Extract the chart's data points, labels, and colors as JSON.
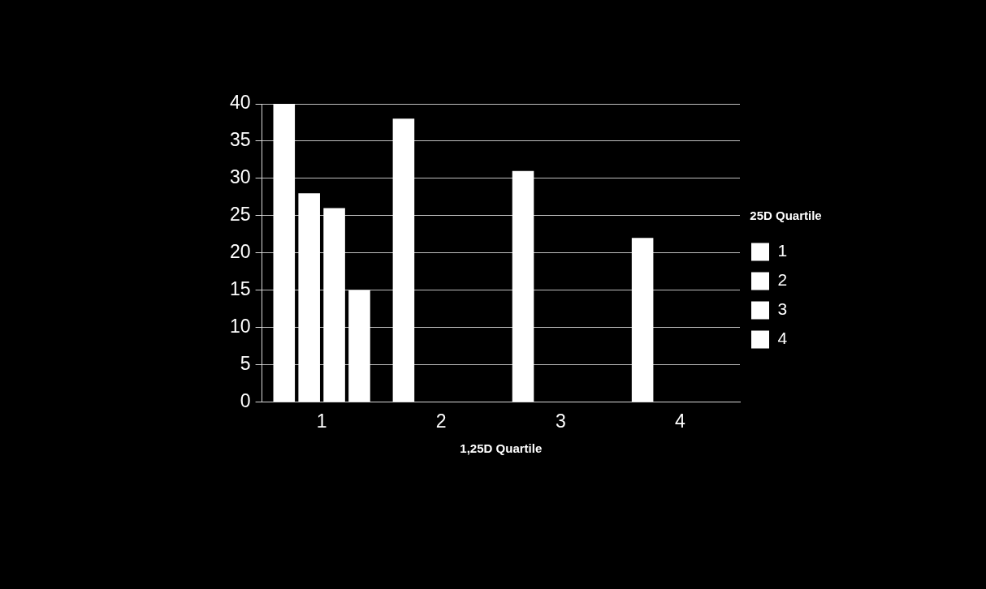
{
  "chart_data": {
    "type": "bar",
    "xlabel": "1,25D Quartile",
    "legend_title": "25D Quartile",
    "categories": [
      "1",
      "2",
      "3",
      "4"
    ],
    "series": [
      {
        "name": "1",
        "color": "#ffffff",
        "values": [
          40,
          38,
          31,
          22
        ]
      },
      {
        "name": "2",
        "color": "#ffffff",
        "values": [
          28,
          null,
          null,
          null
        ]
      },
      {
        "name": "3",
        "color": "#ffffff",
        "values": [
          26,
          null,
          null,
          null
        ]
      },
      {
        "name": "4",
        "color": "#ffffff",
        "values": [
          15,
          null,
          null,
          null
        ]
      }
    ],
    "ylim": [
      0,
      40
    ],
    "yticks": [
      0,
      5,
      10,
      15,
      20,
      25,
      30,
      35,
      40
    ],
    "grid": "y",
    "legend": "right"
  }
}
